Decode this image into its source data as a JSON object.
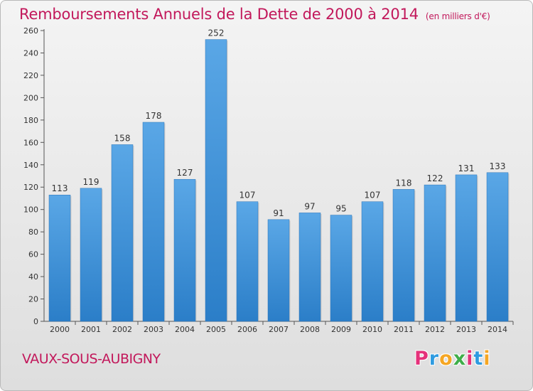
{
  "header": {
    "title": "Remboursements Annuels de la Dette de 2000 à 2014",
    "unit": "(en milliers d'€)"
  },
  "footer": {
    "commune": "VAUX-SOUS-AUBIGNY",
    "brand": [
      "P",
      "r",
      "o",
      "x",
      "i",
      "t",
      "i"
    ]
  },
  "colors": {
    "bar_top": "#5aa7e6",
    "bar_bottom": "#2b7ec8",
    "title": "#c2185b",
    "brand": [
      "#e5317a",
      "#2f9be0",
      "#f5a623",
      "#3fae49",
      "#e5317a",
      "#2f9be0",
      "#f5a623"
    ]
  },
  "chart_data": {
    "type": "bar",
    "title": "Remboursements Annuels de la Dette de 2000 à 2014",
    "categories": [
      "2000",
      "2001",
      "2002",
      "2003",
      "2004",
      "2005",
      "2006",
      "2007",
      "2008",
      "2009",
      "2010",
      "2011",
      "2012",
      "2013",
      "2014"
    ],
    "values": [
      113,
      119,
      158,
      178,
      127,
      252,
      107,
      91,
      97,
      95,
      107,
      118,
      122,
      131,
      133
    ],
    "yticks": [
      0,
      20,
      40,
      60,
      80,
      100,
      120,
      140,
      160,
      180,
      200,
      220,
      240,
      260
    ],
    "ylim": [
      0,
      260
    ],
    "grid": false,
    "legend": "none"
  }
}
